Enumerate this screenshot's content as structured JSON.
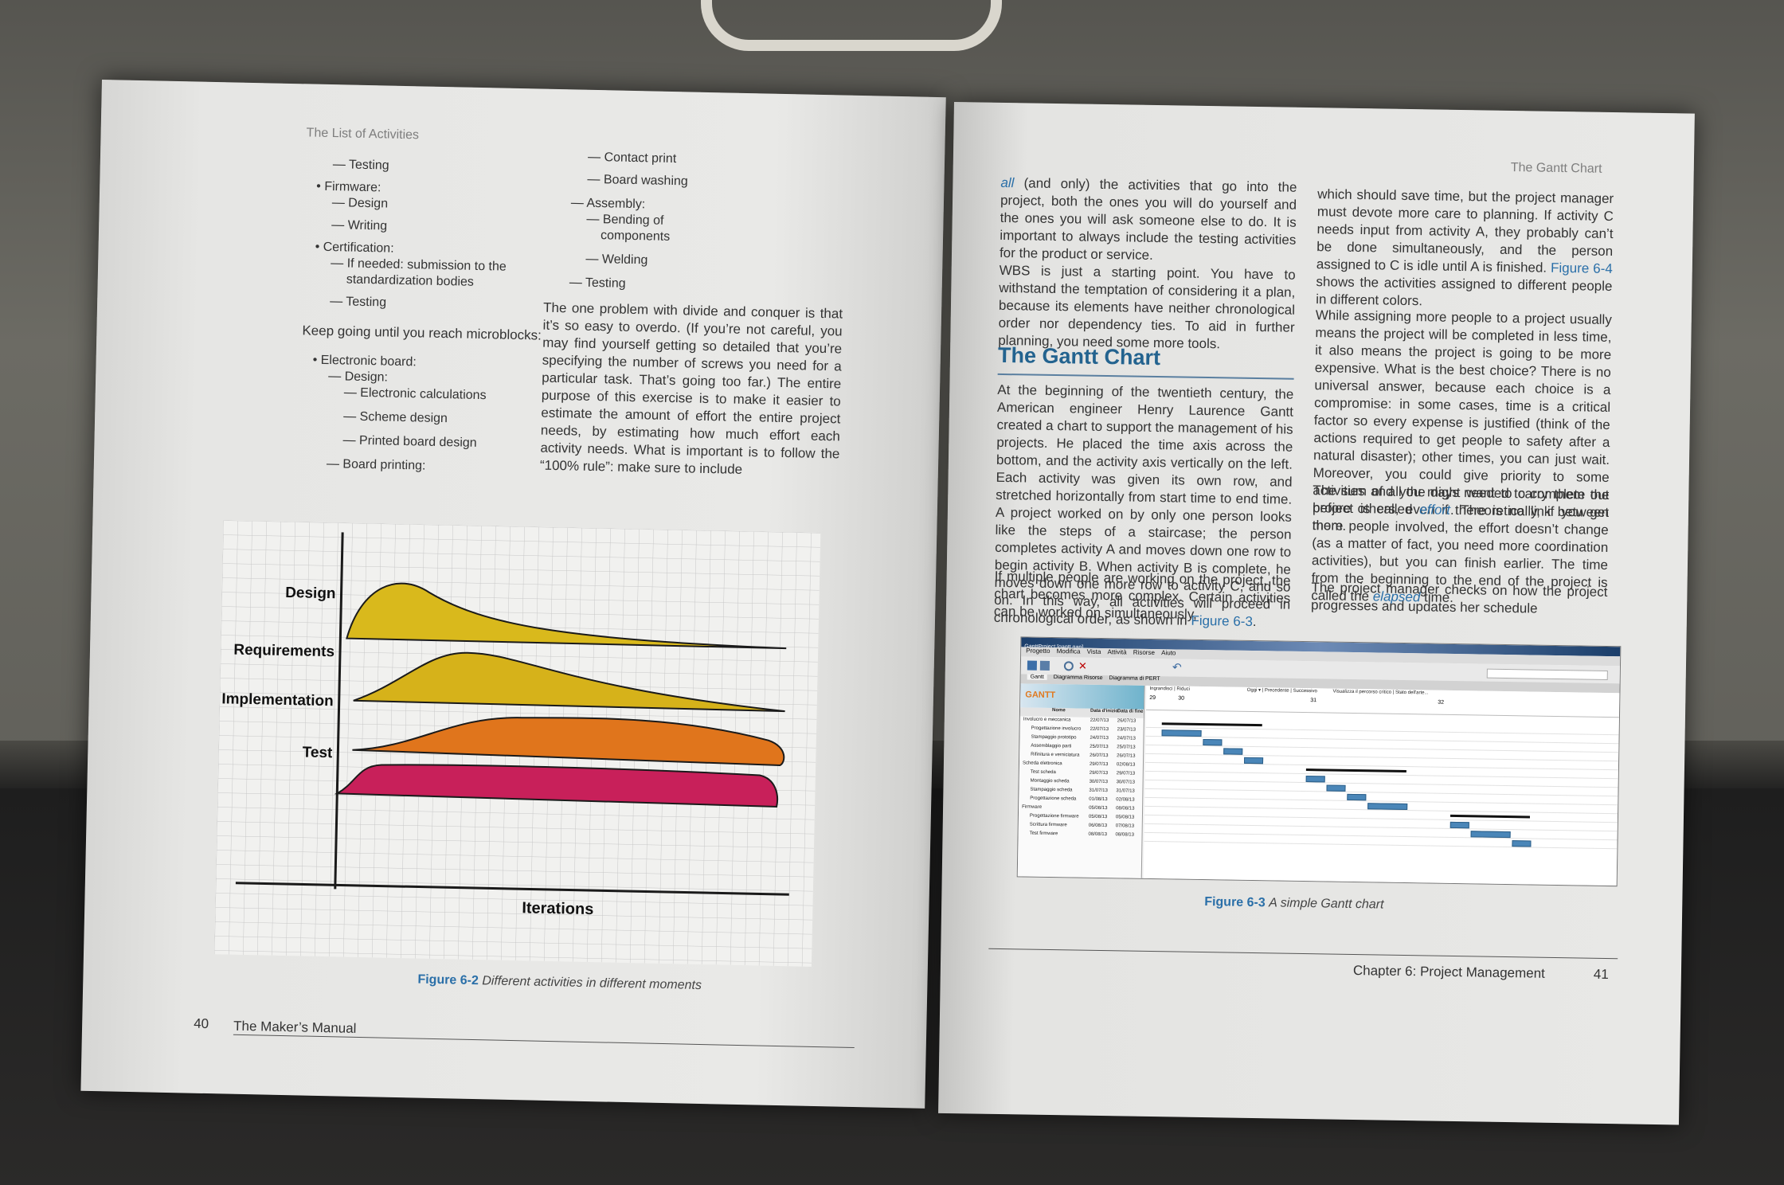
{
  "left_page": {
    "running_head": "The List of Activities",
    "col1": {
      "items": [
        "— Testing",
        "• Firmware:",
        "— Design",
        "— Writing",
        "• Certification:",
        "— If needed: submission to the",
        "standardization bodies",
        "— Testing"
      ],
      "keep_going": "Keep going until you reach microblocks:",
      "items2": [
        "• Electronic board:",
        "— Design:",
        "— Electronic calculations",
        "— Scheme design",
        "— Printed board design",
        "— Board printing:"
      ]
    },
    "col2": {
      "items": [
        "— Contact print",
        "— Board washing",
        "— Assembly:",
        "— Bending of",
        "components",
        "— Welding",
        "— Testing"
      ],
      "paragraph": "The one problem with divide and conquer is that it’s so easy to overdo. (If you’re not careful, you may find yourself getting so detailed that you’re specifying the number of screws you need for a particular task. That’s going too far.) The entire purpose of this exercise is to make it easier to estimate the amount of effort the entire project needs, by estimating how much effort each activity needs. What is important is to follow the “100% rule”: make sure to include"
    },
    "figure": {
      "rows": [
        "Design",
        "Requirements",
        "Implementation",
        "Test"
      ],
      "x_label": "Iterations",
      "colors": {
        "Design": "#d9b91c",
        "Requirements": "#d6b21a",
        "Implementation": "#e0751c",
        "Test": "#c8205a"
      },
      "caption_num": "Figure 6-2",
      "caption_text": "Different activities in different moments"
    },
    "footer_page": "40",
    "footer_title": "The Maker’s Manual"
  },
  "right_page": {
    "running_head": "The Gantt Chart",
    "col1": {
      "p1_lead": "all",
      "p1": " (and only) the activities that go into the project, both the ones you will do yourself and the ones you will ask someone else to do. It is important to always include the testing activities for the product or service.",
      "p2": "WBS is just a starting point. You have to withstand the temptation of considering it a plan, because its elements have neither chronological order nor dependency ties. To aid in further planning, you need some more tools.",
      "heading": "The Gantt Chart",
      "p3": "At the beginning of the twentieth century, the American engineer Henry Laurence Gantt created a chart to support the management of his projects. He placed the time axis across the bottom, and the activity axis vertically on the left. Each activity was given its own row, and stretched horizontally from start time to end time. A project worked on by only one person looks like the steps of a staircase; the person completes activity A and moves down one row to begin activity B. When activity B is complete, he moves down one more row to activity C, and so on. In this way, all activities will proceed in chronological order, as shown in ",
      "p3_link": "Figure 6-3",
      "p3_end": ".",
      "p4": "If multiple people are working on the project, the chart becomes more complex. Certain activities can be worked on simultaneously,"
    },
    "col2": {
      "p1": "which should save time, but the project manager must devote more care to planning. If activity C needs input from activity A, they probably can’t be done simultaneously, and the person assigned to C is idle until A is finished. ",
      "p1_link": "Figure 6-4",
      "p1_end": " shows the activities assigned to different people in different colors.",
      "p2": "While assigning more people to a project usually means the project will be completed in less time, it also means the project is going to be more expensive. What is the best choice? There is no universal answer, because each choice is a compromise: in some cases, time is a critical factor so every expense is justified (think of the actions required to get people to safety after a natural disaster); other times, you can just wait. Moreover, you could give priority to some activities and you might want to carry them out before others, even if there is no link between them.",
      "p3_a": "The sum of all the days needed to complete the project is called ",
      "p3_effort": "effort",
      "p3_b": ". Theoretically, if you get more people involved, the effort doesn’t change (as a matter of fact, you need more coordination activities), but you can finish earlier. The time from the beginning to the end of the project is called the ",
      "p3_elapsed": "elapsed",
      "p3_c": " time.",
      "p4": "The project manager checks on how the project progresses and updates her schedule"
    },
    "gantt": {
      "title": "GanttProject [gantt.gan]",
      "menu": [
        "Progetto",
        "Modifica",
        "Vista",
        "Attività",
        "Risorse",
        "Aiuto"
      ],
      "tabs": [
        "Gantt",
        "Diagramma Risorse",
        "Diagramma di PERT"
      ],
      "toolbar_right": [
        "Ingrandisci | Riduci",
        "Oggi ▾ | Precedente | Successivo",
        "Visualizza il percorso critico | Stato dell'arte..."
      ],
      "logo": "GANTT",
      "columns": [
        "Nome",
        "Data d'inizio",
        "Data di fine"
      ],
      "rows": [
        [
          "Involucro e meccanica",
          "22/07/13",
          "26/07/13"
        ],
        [
          "Progettazione involucro",
          "22/07/13",
          "23/07/13"
        ],
        [
          "Stampaggio prototipo",
          "24/07/13",
          "24/07/13"
        ],
        [
          "Assemblaggio parti",
          "25/07/13",
          "25/07/13"
        ],
        [
          "Rifinitura e verniciatura",
          "26/07/13",
          "26/07/13"
        ],
        [
          "Scheda elettronica",
          "29/07/13",
          "02/08/13"
        ],
        [
          "Test scheda",
          "29/07/13",
          "29/07/13"
        ],
        [
          "Montaggio scheda",
          "30/07/13",
          "30/07/13"
        ],
        [
          "Stampaggio scheda",
          "31/07/13",
          "31/07/13"
        ],
        [
          "Progettazione scheda",
          "01/08/13",
          "02/08/13"
        ],
        [
          "Firmware",
          "05/08/13",
          "08/08/13"
        ],
        [
          "Progettazione firmware",
          "05/08/13",
          "05/08/13"
        ],
        [
          "Scrittura firmware",
          "06/08/13",
          "07/08/13"
        ],
        [
          "Test firmware",
          "08/08/13",
          "08/08/13"
        ]
      ],
      "weeks": [
        "29",
        "30",
        "31",
        "32"
      ]
    },
    "caption_num": "Figure 6-3",
    "caption_text": "A simple Gantt chart",
    "footer_title": "Chapter 6: Project Management",
    "footer_page": "41"
  }
}
